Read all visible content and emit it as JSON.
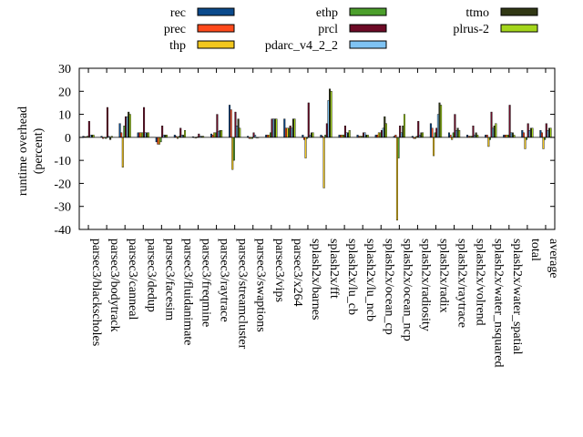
{
  "chart_data": {
    "type": "bar",
    "ylabel": "runtime overhead",
    "ylabel_unit": "(percent)",
    "ylim": [
      -40,
      30
    ],
    "yticks": [
      30,
      20,
      10,
      0,
      -10,
      -20,
      -30,
      -40
    ],
    "grid": false,
    "legend_position": "top",
    "categories": [
      "parsec3/blackscholes",
      "parsec3/bodytrack",
      "parsec3/canneal",
      "parsec3/dedup",
      "parsec3/facesim",
      "parsec3/fluidanimate",
      "parsec3/freqmine",
      "parsec3/raytrace",
      "parsec3/streamcluster",
      "parsec3/swaptions",
      "parsec3/vips",
      "parsec3/x264",
      "splash2x/barnes",
      "splash2x/fft",
      "splash2x/lu_cb",
      "splash2x/lu_ncb",
      "splash2x/ocean_cp",
      "splash2x/ocean_ncp",
      "splash2x/radiosity",
      "splash2x/radix",
      "splash2x/raytrace",
      "splash2x/volrend",
      "splash2x/water_nsquared",
      "splash2x/water_spatial",
      "total",
      "average"
    ],
    "series": [
      {
        "name": "rec",
        "color": "#0b4a8c",
        "values": [
          0.5,
          0.5,
          6,
          2,
          -2,
          1,
          0.3,
          1.5,
          14,
          0.5,
          1,
          8,
          1,
          1,
          1,
          1,
          1,
          0.5,
          0.5,
          6,
          2,
          1,
          1,
          1,
          3,
          3
        ]
      },
      {
        "name": "prec",
        "color": "#ff4a1c",
        "values": [
          0.3,
          -0.5,
          2,
          2,
          -3,
          0.5,
          0.1,
          1,
          12,
          -0.5,
          1,
          4,
          -1,
          0.5,
          1,
          0.5,
          1,
          1,
          -0.5,
          4,
          1,
          0.5,
          1,
          1,
          2,
          2
        ]
      },
      {
        "name": "thp",
        "color": "#f2c71e",
        "values": [
          0.3,
          0,
          -13,
          2,
          -3,
          -0.5,
          -0.3,
          2,
          -14,
          -0.5,
          1,
          4,
          -9,
          -22,
          1,
          0.5,
          2,
          -36,
          -0.5,
          -8,
          -1,
          0.5,
          -4,
          1,
          -5,
          -5
        ]
      },
      {
        "name": "ethp",
        "color": "#4c9f2c",
        "values": [
          0.5,
          -0.5,
          5,
          2,
          -2,
          0.5,
          0.2,
          2,
          -10,
          -0.5,
          2,
          4,
          -0.5,
          1,
          1,
          0.5,
          2,
          -9,
          0.5,
          2,
          2,
          0.5,
          -1,
          1,
          -1,
          -1
        ]
      },
      {
        "name": "prcl",
        "color": "#6d0a26",
        "values": [
          7,
          13,
          9,
          13,
          5,
          4,
          1.5,
          10,
          11,
          2,
          8,
          5,
          15,
          6,
          5,
          2,
          3,
          5,
          7,
          4,
          10,
          5,
          11,
          14,
          6,
          6
        ]
      },
      {
        "name": "pdarc_v4_2_2",
        "color": "#7fc3f3",
        "values": [
          1,
          0.5,
          9,
          2,
          1,
          1,
          0.5,
          2.5,
          5,
          1,
          8,
          4,
          1,
          16,
          2,
          2,
          4,
          2,
          1,
          10,
          3,
          1,
          4,
          2,
          3,
          3
        ]
      },
      {
        "name": "ttmo",
        "color": "#313814",
        "values": [
          1,
          -1,
          11,
          2,
          1,
          1,
          0.5,
          3,
          8,
          0,
          8,
          8,
          2,
          21,
          2,
          1,
          9,
          5,
          2,
          15,
          4,
          2,
          5,
          2,
          4,
          4
        ]
      },
      {
        "name": "plrus-2",
        "color": "#a4d61c",
        "values": [
          1,
          0.5,
          10,
          2,
          1,
          3,
          0.5,
          3,
          4,
          0,
          8,
          8,
          2,
          20,
          3,
          1,
          6,
          10,
          2,
          14,
          3,
          1,
          6,
          1,
          4,
          4
        ]
      }
    ]
  }
}
